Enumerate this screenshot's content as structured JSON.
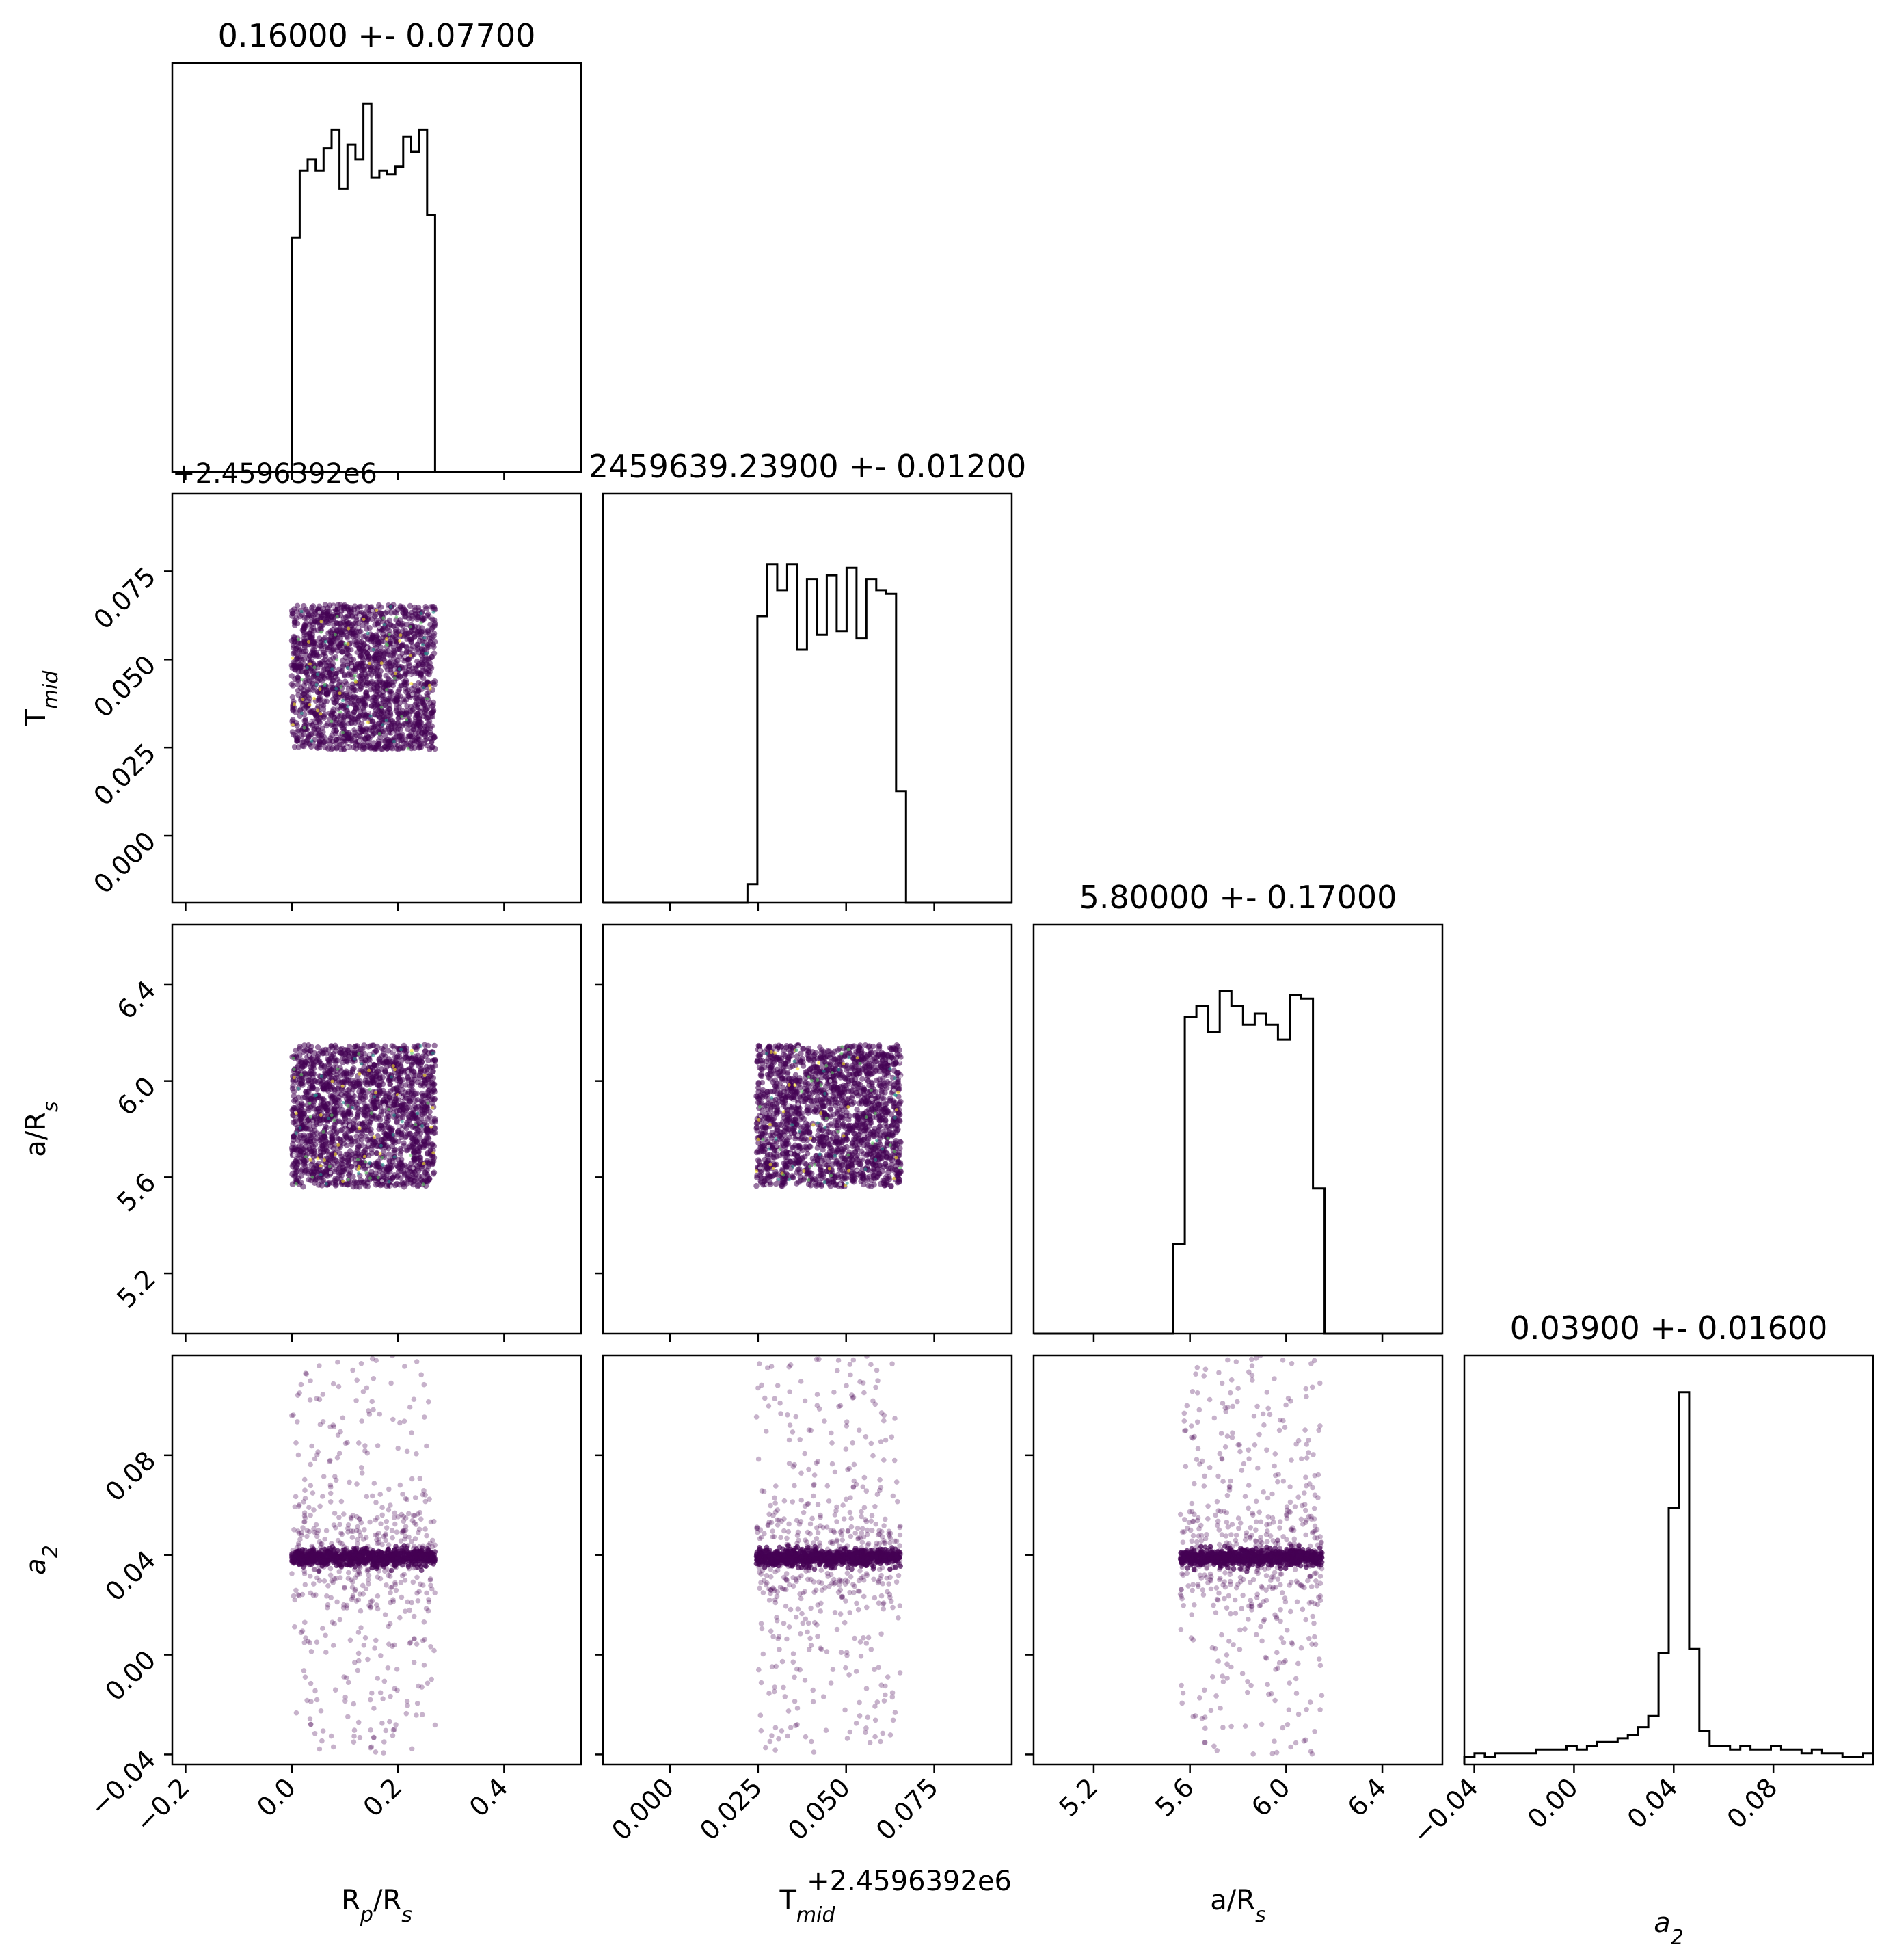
{
  "chart_data": {
    "type": "corner",
    "parameters": [
      {
        "key": "rp",
        "label_main": "R",
        "label_sub": "p",
        "label_tail": "/R",
        "label_tail_sub": "s",
        "title": "0.16000 +- 0.07700",
        "range": [
          -0.225,
          0.545
        ],
        "ticks": [
          -0.2,
          0.0,
          0.2,
          0.4
        ],
        "tick_labels": [
          "−0.2",
          "0.0",
          "0.2",
          "0.4"
        ],
        "sample_range": [
          0.0,
          0.27
        ],
        "hist_range": [
          0.0,
          0.27
        ],
        "hist_values": [
          0.63,
          0.81,
          0.84,
          0.81,
          0.87,
          0.92,
          0.76,
          0.88,
          0.84,
          0.99,
          0.79,
          0.81,
          0.8,
          0.82,
          0.9,
          0.86,
          0.92,
          0.69
        ]
      },
      {
        "key": "tmid",
        "label_main": "T",
        "label_sub": "mid",
        "title": "2459639.23900 +- 0.01200",
        "offset_text": "+2.4596392e6",
        "range": [
          -0.019,
          0.097
        ],
        "ticks": [
          0.0,
          0.025,
          0.05,
          0.075
        ],
        "tick_labels": [
          "0.000",
          "0.025",
          "0.050",
          "0.075"
        ],
        "sample_range": [
          0.0245,
          0.0655
        ],
        "hist_range": [
          0.022,
          0.067
        ],
        "hist_values": [
          0.05,
          0.77,
          0.91,
          0.84,
          0.91,
          0.68,
          0.87,
          0.72,
          0.88,
          0.73,
          0.9,
          0.71,
          0.87,
          0.84,
          0.83,
          0.3
        ]
      },
      {
        "key": "ars",
        "label_main": "a/R",
        "label_sub": "s",
        "title": "5.80000 +- 0.17000",
        "range": [
          4.95,
          6.65
        ],
        "ticks": [
          5.2,
          5.6,
          6.0,
          6.4
        ],
        "tick_labels": [
          "5.2",
          "5.6",
          "6.0",
          "6.4"
        ],
        "sample_range": [
          5.56,
          6.15
        ],
        "hist_range": [
          5.53,
          6.16
        ],
        "hist_values": [
          0.24,
          0.85,
          0.88,
          0.81,
          0.92,
          0.88,
          0.83,
          0.86,
          0.83,
          0.79,
          0.91,
          0.9,
          0.39
        ]
      },
      {
        "key": "a2",
        "label_main": "a",
        "label_sub": "2",
        "title": "0.03900 +- 0.01600",
        "range": [
          -0.044,
          0.12
        ],
        "ticks": [
          -0.04,
          0.0,
          0.04,
          0.08
        ],
        "tick_labels": [
          "−0.04",
          "0.00",
          "0.04",
          "0.08"
        ],
        "sample_range": [
          -0.04,
          0.12
        ],
        "sample_center": 0.039,
        "hist_range": [
          -0.044,
          0.12
        ],
        "hist_values": [
          0.02,
          0.03,
          0.02,
          0.03,
          0.03,
          0.03,
          0.03,
          0.04,
          0.04,
          0.04,
          0.05,
          0.04,
          0.05,
          0.06,
          0.06,
          0.07,
          0.08,
          0.1,
          0.13,
          0.3,
          0.69,
          1.0,
          0.31,
          0.09,
          0.05,
          0.05,
          0.04,
          0.05,
          0.04,
          0.04,
          0.05,
          0.04,
          0.04,
          0.03,
          0.04,
          0.03,
          0.03,
          0.02,
          0.02,
          0.03
        ]
      }
    ],
    "point_color": "#440154",
    "speckle_colors": [
      "#21918c",
      "#fde725",
      "#5ec962",
      "#ffffff"
    ]
  }
}
